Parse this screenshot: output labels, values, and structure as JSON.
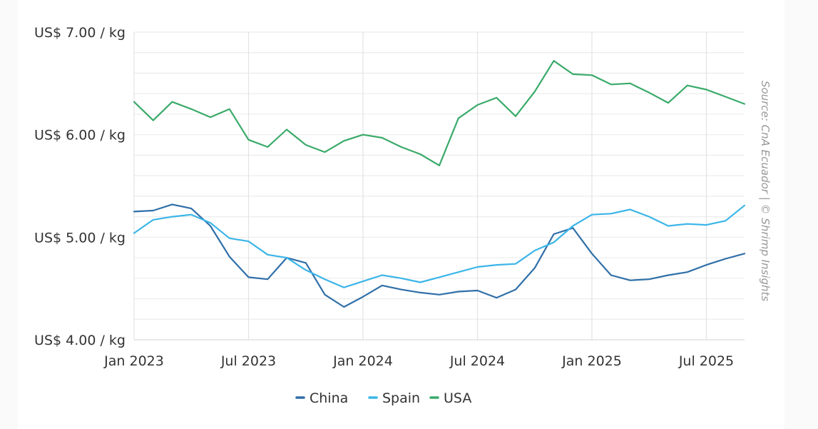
{
  "chart_data": {
    "type": "line",
    "title": "",
    "xlabel": "",
    "ylabel": "",
    "ylim": [
      4.0,
      7.0
    ],
    "y_ticks": [
      {
        "value": 7.0,
        "label": "US$ 7.00 / kg"
      },
      {
        "value": 6.0,
        "label": "US$ 6.00 / kg"
      },
      {
        "value": 5.0,
        "label": "US$ 5.00 / kg"
      },
      {
        "value": 4.0,
        "label": "US$ 4.00 / kg"
      }
    ],
    "y_minor_step": 0.2,
    "x_ticks": [
      {
        "index": 0,
        "label": "Jan 2023"
      },
      {
        "index": 6,
        "label": "Jul 2023"
      },
      {
        "index": 12,
        "label": "Jan 2024"
      },
      {
        "index": 18,
        "label": "Jul 2024"
      },
      {
        "index": 24,
        "label": "Jan 2025"
      },
      {
        "index": 30,
        "label": "Jul 2025"
      }
    ],
    "x": [
      "2023-01",
      "2023-02",
      "2023-03",
      "2023-04",
      "2023-05",
      "2023-06",
      "2023-07",
      "2023-08",
      "2023-09",
      "2023-10",
      "2023-11",
      "2023-12",
      "2024-01",
      "2024-02",
      "2024-03",
      "2024-04",
      "2024-05",
      "2024-06",
      "2024-07",
      "2024-08",
      "2024-09",
      "2024-10",
      "2024-11",
      "2024-12",
      "2025-01",
      "2025-02",
      "2025-03",
      "2025-04",
      "2025-05",
      "2025-06",
      "2025-07",
      "2025-08",
      "2025-09"
    ],
    "grid": true,
    "legend_position": "bottom-center",
    "series": [
      {
        "name": "China",
        "color": "#2f6fa8",
        "values": [
          5.25,
          5.26,
          5.32,
          5.28,
          5.11,
          4.81,
          4.61,
          4.59,
          4.8,
          4.75,
          4.44,
          4.32,
          4.42,
          4.53,
          4.49,
          4.46,
          4.44,
          4.47,
          4.48,
          4.41,
          4.49,
          4.7,
          5.03,
          5.09,
          4.84,
          4.63,
          4.58,
          4.59,
          4.63,
          4.66,
          4.73,
          4.79,
          4.84
        ]
      },
      {
        "name": "Spain",
        "color": "#3bb5e8",
        "values": [
          5.04,
          5.17,
          5.2,
          5.22,
          5.14,
          4.99,
          4.96,
          4.83,
          4.8,
          4.68,
          4.59,
          4.51,
          4.57,
          4.63,
          4.6,
          4.56,
          4.61,
          4.66,
          4.71,
          4.73,
          4.74,
          4.87,
          4.95,
          5.11,
          5.22,
          5.23,
          5.27,
          5.2,
          5.11,
          5.13,
          5.12,
          5.16,
          5.31
        ]
      },
      {
        "name": "USA",
        "color": "#3aaa6a",
        "values": [
          6.32,
          6.14,
          6.32,
          6.25,
          6.17,
          6.25,
          5.95,
          5.88,
          6.05,
          5.9,
          5.83,
          5.94,
          6.0,
          5.97,
          5.88,
          5.81,
          5.7,
          6.16,
          6.29,
          6.36,
          6.18,
          6.42,
          6.72,
          6.59,
          6.58,
          6.49,
          6.5,
          6.41,
          6.31,
          6.48,
          6.44,
          6.37,
          6.3
        ]
      }
    ],
    "source": "Source: CnA Ecuador | © Shrimp Insights"
  }
}
